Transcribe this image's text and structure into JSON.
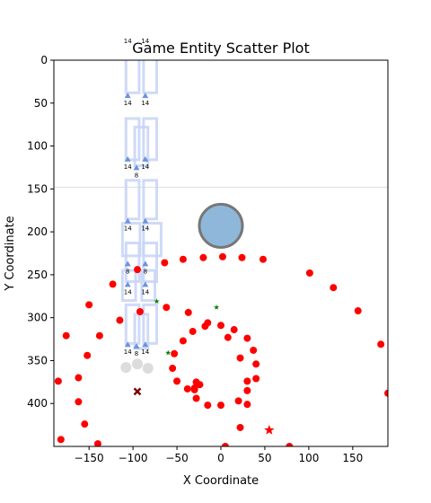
{
  "chart_data": {
    "type": "scatter",
    "title": "Game Entity Scatter Plot",
    "xlabel": "X Coordinate",
    "ylabel": "Y Coordinate",
    "xlim": [
      -190,
      190
    ],
    "ylim": [
      450,
      0
    ],
    "y_inverted": true,
    "x_ticks": [
      -150,
      -100,
      -50,
      0,
      50,
      100,
      150
    ],
    "y_ticks": [
      0,
      50,
      100,
      150,
      200,
      250,
      300,
      350,
      400
    ],
    "x_tick_labels": [
      "−150",
      "−100",
      "−50",
      "0",
      "50",
      "100",
      "150"
    ],
    "y_tick_labels": [
      "0",
      "50",
      "100",
      "150",
      "200",
      "250",
      "300",
      "350",
      "400"
    ],
    "grid": false,
    "horizontal_line_y": 148,
    "colors": {
      "enemy": "#ff0000",
      "tower_frame": "#c7d3f7",
      "tower_marker": "#6d93de",
      "player": "#8ab4d8",
      "player_edge": "#707070",
      "bush": "#008000",
      "ghost": "#d3d3d3",
      "x_marker": "#800000",
      "hline": "#dddddd"
    },
    "enemies": [
      [
        -64,
        236
      ],
      [
        -43,
        232
      ],
      [
        -20,
        230
      ],
      [
        2,
        229
      ],
      [
        24,
        230
      ],
      [
        48,
        232
      ],
      [
        101,
        248
      ],
      [
        128,
        265
      ],
      [
        156,
        292
      ],
      [
        182,
        331
      ],
      [
        190,
        388
      ],
      [
        -123,
        261
      ],
      [
        -150,
        285
      ],
      [
        -115,
        303
      ],
      [
        -138,
        321
      ],
      [
        -176,
        321
      ],
      [
        -152,
        344
      ],
      [
        -162,
        370
      ],
      [
        -162,
        398
      ],
      [
        -155,
        424
      ],
      [
        -185,
        374
      ],
      [
        -182,
        442
      ],
      [
        -140,
        447
      ],
      [
        -95,
        244
      ],
      [
        -92,
        293
      ],
      [
        -62,
        288
      ],
      [
        -37,
        294
      ],
      [
        -43,
        327
      ],
      [
        -32,
        316
      ],
      [
        -53,
        342
      ],
      [
        -55,
        359
      ],
      [
        -50,
        374
      ],
      [
        -38,
        383
      ],
      [
        -30,
        382
      ],
      [
        -28,
        375
      ],
      [
        -24,
        378
      ],
      [
        -30,
        384
      ],
      [
        -28,
        394
      ],
      [
        -15,
        402
      ],
      [
        0,
        402
      ],
      [
        20,
        397
      ],
      [
        30,
        401
      ],
      [
        22,
        428
      ],
      [
        30,
        385
      ],
      [
        30,
        374
      ],
      [
        40,
        371
      ],
      [
        40,
        354
      ],
      [
        37,
        338
      ],
      [
        30,
        324
      ],
      [
        22,
        347
      ],
      [
        8,
        323
      ],
      [
        15,
        314
      ],
      [
        0,
        309
      ],
      [
        -15,
        306
      ],
      [
        -18,
        310
      ],
      [
        5,
        450
      ],
      [
        78,
        450
      ]
    ],
    "enemy_star": [
      55,
      431
    ],
    "bushes": [
      [
        -73,
        281
      ],
      [
        -5,
        288
      ],
      [
        -60,
        341
      ]
    ],
    "x_marker": [
      -95,
      386
    ],
    "ghosts": [
      [
        -108,
        358
      ],
      [
        -95,
        354
      ],
      [
        -83,
        359
      ]
    ],
    "player": {
      "x": 0,
      "y": 193,
      "radius": 24
    },
    "tower_frames": [
      [
        -108,
        -5,
        15,
        43
      ],
      [
        -88,
        -5,
        15,
        43
      ],
      [
        -108,
        68,
        15,
        48
      ],
      [
        -88,
        68,
        15,
        48
      ],
      [
        -98,
        78,
        15,
        45
      ],
      [
        -108,
        140,
        15,
        45
      ],
      [
        -88,
        140,
        15,
        45
      ],
      [
        -112,
        190,
        20,
        38
      ],
      [
        -88,
        190,
        20,
        38
      ],
      [
        -108,
        213,
        15,
        45
      ],
      [
        -88,
        213,
        15,
        45
      ],
      [
        -112,
        245,
        15,
        35
      ],
      [
        -90,
        245,
        15,
        35
      ],
      [
        -108,
        285,
        15,
        45
      ],
      [
        -88,
        285,
        15,
        45
      ],
      [
        -98,
        296,
        15,
        40
      ]
    ],
    "tower_markers": [
      {
        "x": -106,
        "y": 42,
        "label": "14"
      },
      {
        "x": -86,
        "y": 42,
        "label": "14"
      },
      {
        "x": -106,
        "y": 116,
        "label": "14"
      },
      {
        "x": -86,
        "y": 116,
        "label": "14"
      },
      {
        "x": -96,
        "y": 126,
        "label": "8"
      },
      {
        "x": -106,
        "y": 188,
        "label": "14"
      },
      {
        "x": -86,
        "y": 188,
        "label": "14"
      },
      {
        "x": -106,
        "y": 238,
        "label": "8"
      },
      {
        "x": -86,
        "y": 238,
        "label": "8"
      },
      {
        "x": -106,
        "y": 262,
        "label": "14"
      },
      {
        "x": -86,
        "y": 262,
        "label": "14"
      },
      {
        "x": -106,
        "y": 332,
        "label": "14"
      },
      {
        "x": -86,
        "y": 332,
        "label": "14"
      },
      {
        "x": -96,
        "y": 334,
        "label": "8"
      }
    ],
    "top_labels": [
      "14",
      "14"
    ]
  }
}
